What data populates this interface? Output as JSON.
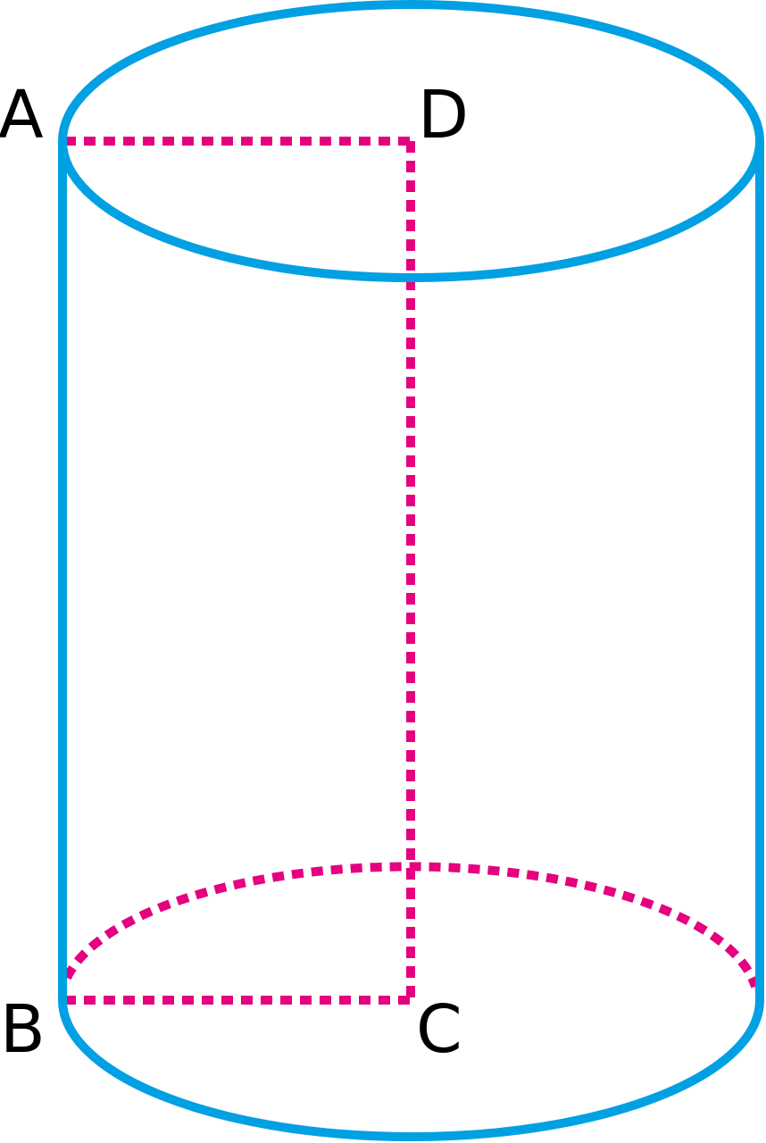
{
  "diagram": {
    "shape": "cylinder",
    "labels": {
      "A": "A",
      "B": "B",
      "C": "C",
      "D": "D"
    },
    "colors": {
      "outline": "#00a0e3",
      "dashed": "#e4007f",
      "text": "#000000"
    }
  }
}
